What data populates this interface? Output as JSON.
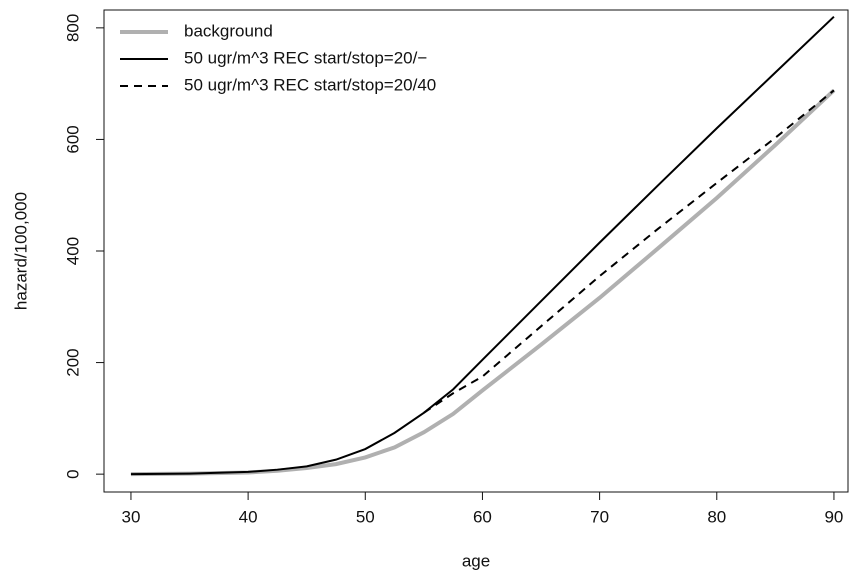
{
  "chart_data": {
    "type": "line",
    "x_label": "age",
    "y_label": "hazard/100,000",
    "x": [
      30,
      35,
      40,
      42.5,
      45,
      47.5,
      50,
      52.5,
      55,
      57.5,
      60,
      65,
      70,
      75,
      80,
      85,
      90
    ],
    "series": [
      {
        "name": "background",
        "color": "#b0b0b0",
        "width": 4,
        "dash": "none",
        "values": [
          0,
          1,
          3,
          6,
          11,
          18,
          30,
          48,
          75,
          108,
          150,
          232,
          316,
          405,
          495,
          590,
          688
        ]
      },
      {
        "name": "50 ugr/m^3 REC start/stop=20/−",
        "color": "#000000",
        "width": 2,
        "dash": "none",
        "values": [
          0,
          1,
          4,
          8,
          14,
          26,
          45,
          74,
          110,
          152,
          205,
          310,
          415,
          518,
          620,
          720,
          820
        ]
      },
      {
        "name": "50 ugr/m^3 REC start/stop=20/40",
        "color": "#000000",
        "width": 2,
        "dash": "8,6",
        "values": [
          null,
          null,
          null,
          null,
          null,
          null,
          null,
          null,
          110,
          145,
          175,
          265,
          355,
          440,
          522,
          603,
          688
        ]
      }
    ],
    "xlim": [
      27.7,
      91.2
    ],
    "ylim": [
      -32,
      832
    ],
    "xticks": [
      30,
      40,
      50,
      60,
      70,
      80,
      90
    ],
    "yticks": [
      0,
      200,
      400,
      600,
      800
    ],
    "legend": "top-left"
  }
}
